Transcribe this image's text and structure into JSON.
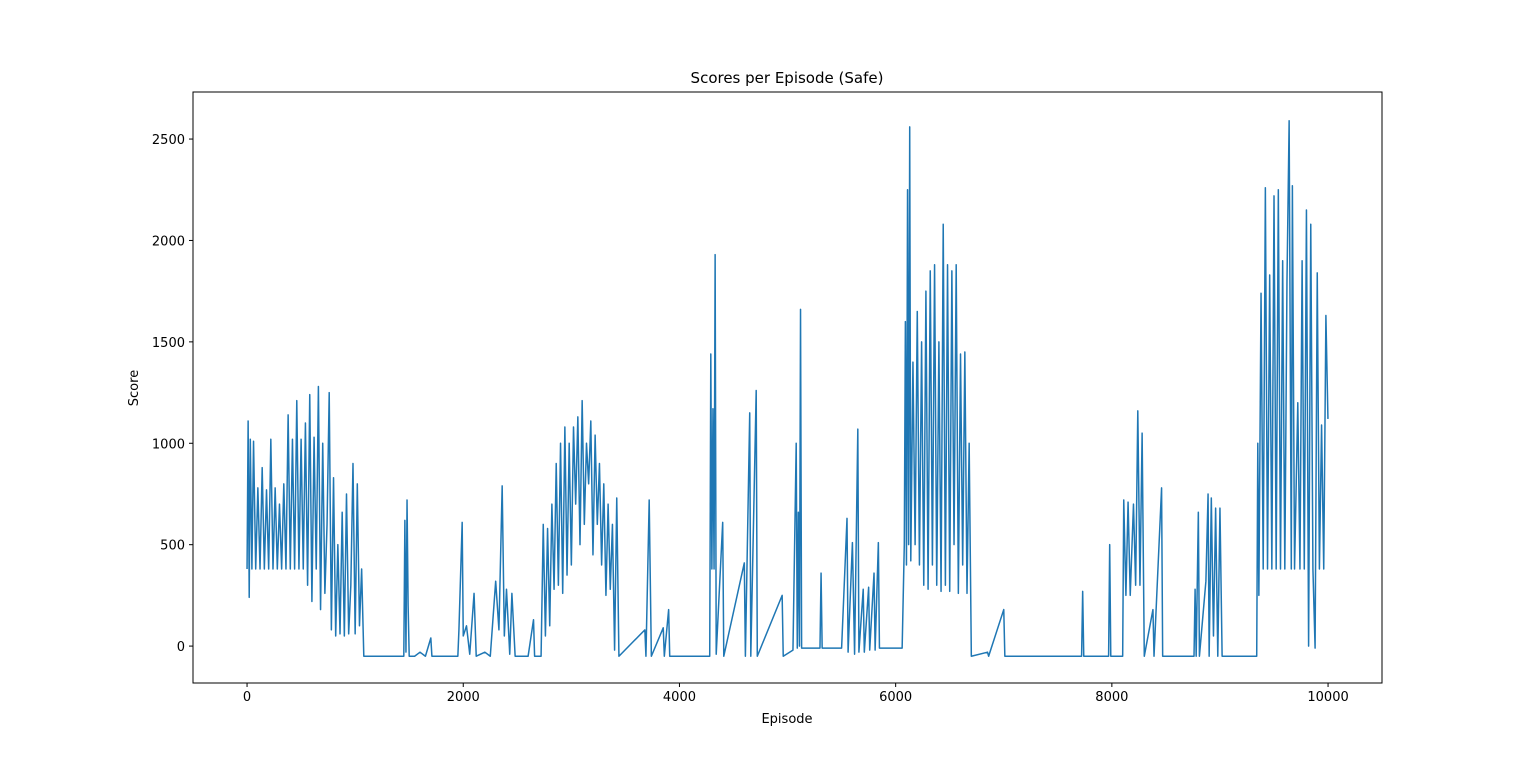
{
  "chart_data": {
    "type": "line",
    "title": "Scores per Episode (Safe)",
    "x_label": "Episode",
    "y_label": "Score",
    "color": "#1f77b4",
    "xlim": [
      -500,
      10499
    ],
    "ylim": [
      -182,
      2732
    ],
    "xticks": [
      0,
      2000,
      4000,
      6000,
      8000,
      10000
    ],
    "yticks": [
      0,
      500,
      1000,
      1500,
      2000,
      2500
    ],
    "x": [
      0,
      10,
      20,
      30,
      45,
      60,
      80,
      100,
      120,
      140,
      160,
      180,
      200,
      220,
      240,
      260,
      280,
      300,
      320,
      340,
      360,
      380,
      400,
      420,
      440,
      460,
      480,
      500,
      520,
      540,
      560,
      580,
      600,
      620,
      640,
      660,
      680,
      700,
      720,
      740,
      760,
      780,
      800,
      820,
      840,
      860,
      880,
      900,
      920,
      940,
      960,
      980,
      1000,
      1020,
      1040,
      1060,
      1080,
      1450,
      1460,
      1470,
      1480,
      1490,
      1500,
      1550,
      1600,
      1650,
      1700,
      1710,
      1950,
      1960,
      1990,
      2000,
      2030,
      2060,
      2100,
      2120,
      2200,
      2250,
      2300,
      2330,
      2360,
      2380,
      2400,
      2430,
      2450,
      2480,
      2520,
      2600,
      2650,
      2660,
      2720,
      2740,
      2760,
      2780,
      2800,
      2820,
      2840,
      2860,
      2880,
      2900,
      2920,
      2940,
      2960,
      2980,
      3000,
      3020,
      3040,
      3060,
      3080,
      3100,
      3120,
      3140,
      3160,
      3180,
      3200,
      3220,
      3240,
      3260,
      3280,
      3300,
      3320,
      3340,
      3360,
      3380,
      3400,
      3420,
      3440,
      3680,
      3690,
      3720,
      3740,
      3850,
      3860,
      3900,
      3910,
      4280,
      4290,
      4300,
      4310,
      4320,
      4330,
      4340,
      4400,
      4410,
      4600,
      4610,
      4650,
      4660,
      4710,
      4720,
      4950,
      4960,
      5050,
      5080,
      5090,
      5100,
      5110,
      5120,
      5130,
      5300,
      5310,
      5320,
      5500,
      5550,
      5560,
      5600,
      5620,
      5650,
      5660,
      5700,
      5710,
      5750,
      5760,
      5800,
      5810,
      5840,
      5850,
      6060,
      6080,
      6090,
      6100,
      6110,
      6120,
      6130,
      6140,
      6160,
      6180,
      6200,
      6220,
      6240,
      6260,
      6280,
      6300,
      6320,
      6340,
      6360,
      6380,
      6400,
      6420,
      6440,
      6460,
      6480,
      6500,
      6520,
      6540,
      6560,
      6580,
      6600,
      6620,
      6640,
      6660,
      6680,
      6700,
      6850,
      6860,
      7000,
      7010,
      7720,
      7730,
      7740,
      7970,
      7980,
      7990,
      8100,
      8110,
      8130,
      8150,
      8170,
      8200,
      8220,
      8240,
      8260,
      8280,
      8300,
      8380,
      8390,
      8460,
      8470,
      8760,
      8770,
      8780,
      8800,
      8810,
      8870,
      8890,
      8900,
      8920,
      8940,
      8960,
      8980,
      9000,
      9020,
      9340,
      9350,
      9360,
      9380,
      9400,
      9420,
      9440,
      9460,
      9480,
      9500,
      9520,
      9540,
      9560,
      9580,
      9600,
      9620,
      9640,
      9660,
      9670,
      9690,
      9720,
      9740,
      9760,
      9780,
      9800,
      9820,
      9840,
      9860,
      9880,
      9900,
      9920,
      9940,
      9960,
      9980,
      9999
    ],
    "values": [
      380,
      1110,
      240,
      1020,
      380,
      1010,
      380,
      780,
      380,
      880,
      380,
      770,
      380,
      1020,
      380,
      780,
      380,
      700,
      380,
      800,
      380,
      1140,
      380,
      1020,
      380,
      1210,
      380,
      1020,
      380,
      1100,
      300,
      1240,
      220,
      1030,
      380,
      1280,
      180,
      1000,
      260,
      600,
      1250,
      80,
      830,
      50,
      500,
      60,
      660,
      50,
      750,
      60,
      300,
      900,
      60,
      800,
      100,
      380,
      -50,
      -50,
      620,
      -30,
      720,
      200,
      -50,
      -50,
      -30,
      -50,
      40,
      -50,
      -50,
      80,
      610,
      50,
      100,
      -40,
      260,
      -50,
      -30,
      -50,
      320,
      80,
      790,
      50,
      280,
      -40,
      260,
      -50,
      -50,
      -50,
      130,
      -50,
      -50,
      600,
      50,
      580,
      100,
      700,
      280,
      900,
      300,
      1000,
      260,
      1080,
      350,
      1000,
      400,
      1080,
      700,
      1130,
      500,
      1210,
      600,
      1000,
      800,
      1110,
      450,
      1040,
      600,
      900,
      400,
      800,
      250,
      700,
      280,
      600,
      -20,
      730,
      -50,
      80,
      -50,
      720,
      -50,
      90,
      -50,
      180,
      -50,
      -50,
      1440,
      380,
      1170,
      380,
      1930,
      -40,
      610,
      -50,
      410,
      -50,
      1150,
      -50,
      1260,
      -50,
      250,
      -50,
      -20,
      1000,
      -10,
      660,
      0,
      1660,
      -10,
      -10,
      360,
      -10,
      -10,
      630,
      -30,
      510,
      -40,
      1070,
      -30,
      280,
      -30,
      290,
      -20,
      360,
      -20,
      510,
      -10,
      -10,
      500,
      1600,
      400,
      2250,
      500,
      2560,
      420,
      1400,
      500,
      1650,
      400,
      1500,
      300,
      1750,
      280,
      1850,
      400,
      1880,
      300,
      1500,
      270,
      2080,
      300,
      1880,
      270,
      1850,
      500,
      1880,
      260,
      1440,
      400,
      1450,
      260,
      1000,
      -50,
      -30,
      -50,
      180,
      -50,
      -50,
      270,
      -50,
      -50,
      500,
      -50,
      -50,
      720,
      250,
      710,
      250,
      700,
      300,
      1160,
      300,
      1050,
      -50,
      180,
      -50,
      780,
      -50,
      -50,
      280,
      -50,
      660,
      -50,
      320,
      750,
      -50,
      730,
      50,
      680,
      -50,
      680,
      -50,
      -50,
      1000,
      250,
      1740,
      380,
      2260,
      380,
      1830,
      380,
      2220,
      380,
      2250,
      380,
      1900,
      380,
      1800,
      2590,
      380,
      2270,
      380,
      1200,
      380,
      1900,
      380,
      2150,
      0,
      2080,
      380,
      -10,
      1840,
      380,
      1090,
      380,
      1630,
      1120
    ]
  }
}
